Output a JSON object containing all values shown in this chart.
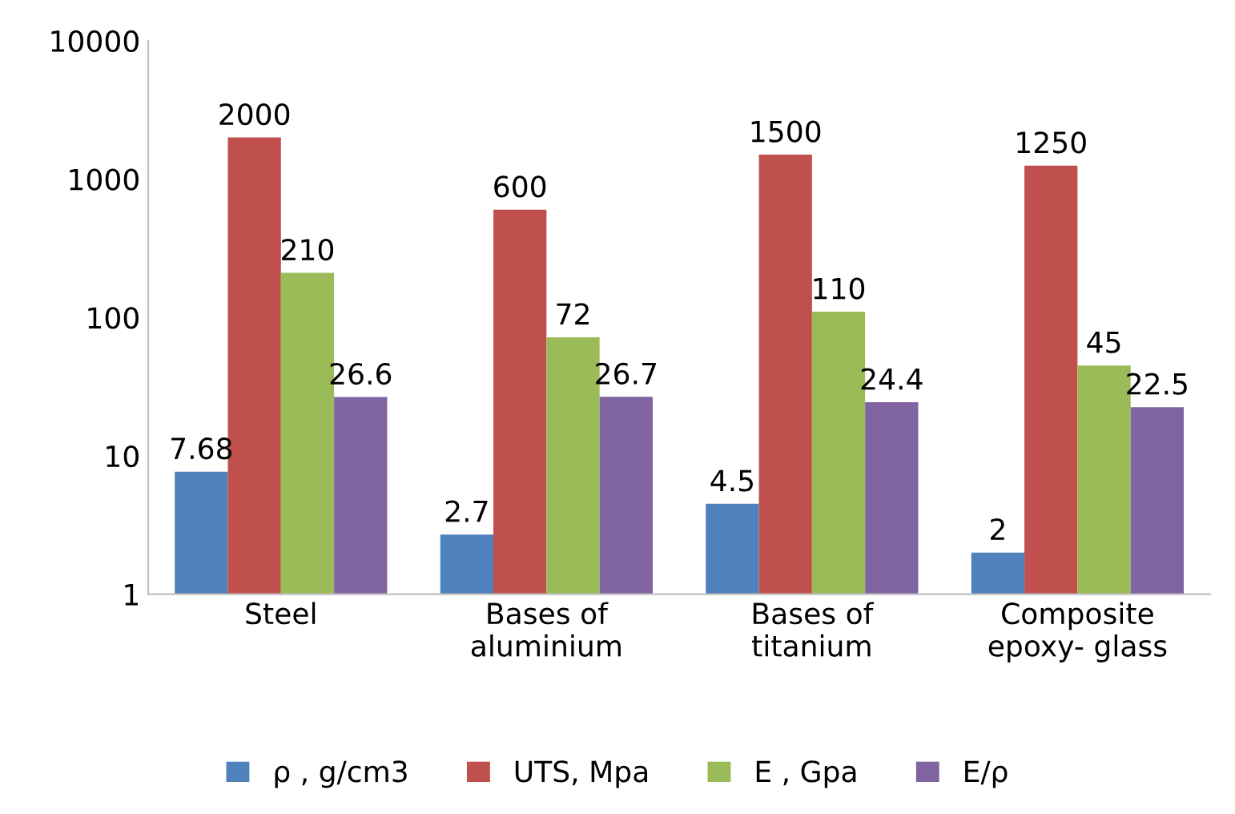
{
  "chart_data": {
    "type": "bar",
    "categories": [
      "Steel",
      "Bases of\naluminium",
      "Bases of\ntitanium",
      "Composite\nepoxy- glass"
    ],
    "series": [
      {
        "name": "ρ , g/cm3",
        "color": "#4f81bd",
        "values": [
          7.68,
          2.7,
          4.5,
          2
        ]
      },
      {
        "name": "UTS, Mpa",
        "color": "#c0504d",
        "values": [
          2000,
          600,
          1500,
          1250
        ]
      },
      {
        "name": "E , Gpa",
        "color": "#9bbb59",
        "values": [
          210,
          72,
          110,
          45
        ]
      },
      {
        "name": "E/ρ",
        "color": "#8064a2",
        "values": [
          26.6,
          26.7,
          24.4,
          22.5
        ]
      }
    ],
    "log": "y",
    "ylim": [
      1,
      10000
    ],
    "yticks": [
      1,
      10,
      100,
      1000,
      10000
    ],
    "data_labels": true,
    "legend": "bottom",
    "grid": false
  }
}
